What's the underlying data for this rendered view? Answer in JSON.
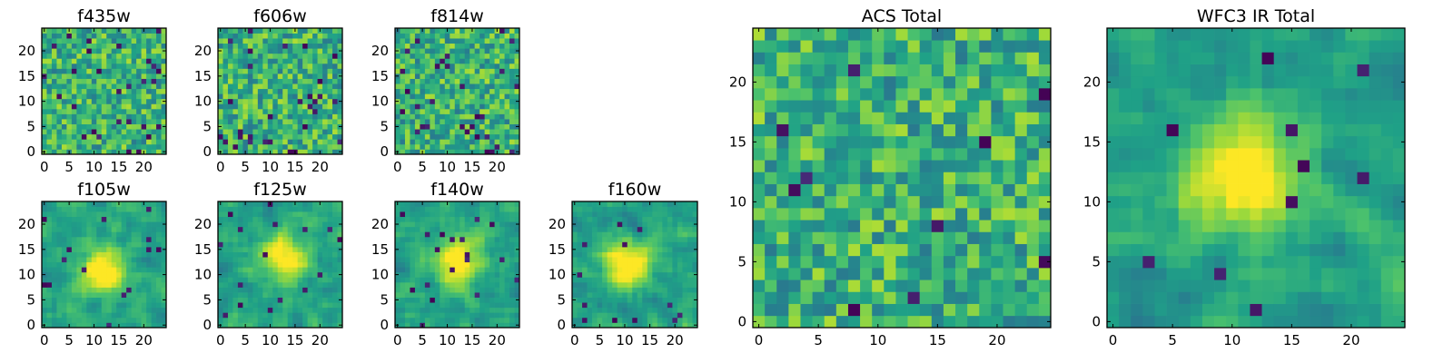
{
  "chart_data": {
    "type": "heatmap",
    "colormap": "viridis",
    "colors": {
      "viridis": [
        "#440154",
        "#46327e",
        "#365c8d",
        "#277f8e",
        "#1fa187",
        "#4ac16d",
        "#a0da39",
        "#fde725"
      ],
      "frame": "#000000"
    },
    "panels": [
      {
        "id": "f435w",
        "title": "f435w",
        "grid": [
          25,
          25
        ],
        "xlim": [
          0,
          24
        ],
        "ylim": [
          0,
          24
        ],
        "xticks": [
          0,
          5,
          10,
          15,
          20
        ],
        "yticks": [
          0,
          5,
          10,
          15,
          20
        ],
        "peak": null,
        "value_range": [
          0,
          1
        ],
        "dark_pixels": 28
      },
      {
        "id": "f606w",
        "title": "f606w",
        "grid": [
          25,
          25
        ],
        "xlim": [
          0,
          24
        ],
        "ylim": [
          0,
          24
        ],
        "xticks": [
          0,
          5,
          10,
          15,
          20
        ],
        "yticks": [
          0,
          5,
          10,
          15,
          20
        ],
        "peak": null,
        "value_range": [
          0,
          1
        ],
        "dark_pixels": 30
      },
      {
        "id": "f814w",
        "title": "f814w",
        "grid": [
          25,
          25
        ],
        "xlim": [
          0,
          24
        ],
        "ylim": [
          0,
          24
        ],
        "xticks": [
          0,
          5,
          10,
          15,
          20
        ],
        "yticks": [
          0,
          5,
          10,
          15,
          20
        ],
        "peak": null,
        "value_range": [
          0,
          1
        ],
        "dark_pixels": 30
      },
      {
        "id": "f105w",
        "title": "f105w",
        "grid": [
          25,
          25
        ],
        "xlim": [
          0,
          24
        ],
        "ylim": [
          0,
          24
        ],
        "xticks": [
          0,
          5,
          10,
          15,
          20
        ],
        "yticks": [
          0,
          5,
          10,
          15,
          20
        ],
        "peak": [
          12,
          11
        ],
        "value_range": [
          0,
          1
        ],
        "dark_pixels": 14
      },
      {
        "id": "f125w",
        "title": "f125w",
        "grid": [
          25,
          25
        ],
        "xlim": [
          0,
          24
        ],
        "ylim": [
          0,
          24
        ],
        "xticks": [
          0,
          5,
          10,
          15,
          20
        ],
        "yticks": [
          0,
          5,
          10,
          15,
          20
        ],
        "peak": [
          13,
          13
        ],
        "value_range": [
          0,
          1
        ],
        "dark_pixels": 16
      },
      {
        "id": "f140w",
        "title": "f140w",
        "grid": [
          25,
          25
        ],
        "xlim": [
          0,
          24
        ],
        "ylim": [
          0,
          24
        ],
        "xticks": [
          0,
          5,
          10,
          15,
          20
        ],
        "yticks": [
          0,
          5,
          10,
          15,
          20
        ],
        "peak": [
          12,
          13
        ],
        "value_range": [
          0,
          1
        ],
        "dark_pixels": 18
      },
      {
        "id": "f160w",
        "title": "f160w",
        "grid": [
          25,
          25
        ],
        "xlim": [
          0,
          24
        ],
        "ylim": [
          0,
          24
        ],
        "xticks": [
          0,
          5,
          10,
          15,
          20
        ],
        "yticks": [
          0,
          5,
          10,
          15,
          20
        ],
        "peak": [
          11,
          12
        ],
        "value_range": [
          0,
          1
        ],
        "dark_pixels": 12
      },
      {
        "id": "acs_total",
        "title": "ACS Total",
        "grid": [
          25,
          25
        ],
        "xlim": [
          0,
          24
        ],
        "ylim": [
          0,
          24
        ],
        "xticks": [
          0,
          5,
          10,
          15,
          20
        ],
        "yticks": [
          0,
          5,
          10,
          15,
          20
        ],
        "peak": null,
        "value_range": [
          0,
          1
        ],
        "dark_pixels": 10
      },
      {
        "id": "wfc3_ir_total",
        "title": "WFC3 IR Total",
        "grid": [
          25,
          25
        ],
        "xlim": [
          0,
          24
        ],
        "ylim": [
          0,
          24
        ],
        "xticks": [
          0,
          5,
          10,
          15,
          20
        ],
        "yticks": [
          0,
          5,
          10,
          15,
          20
        ],
        "peak": [
          11,
          12
        ],
        "value_range": [
          0,
          1
        ],
        "dark_pixels": 10
      }
    ]
  }
}
